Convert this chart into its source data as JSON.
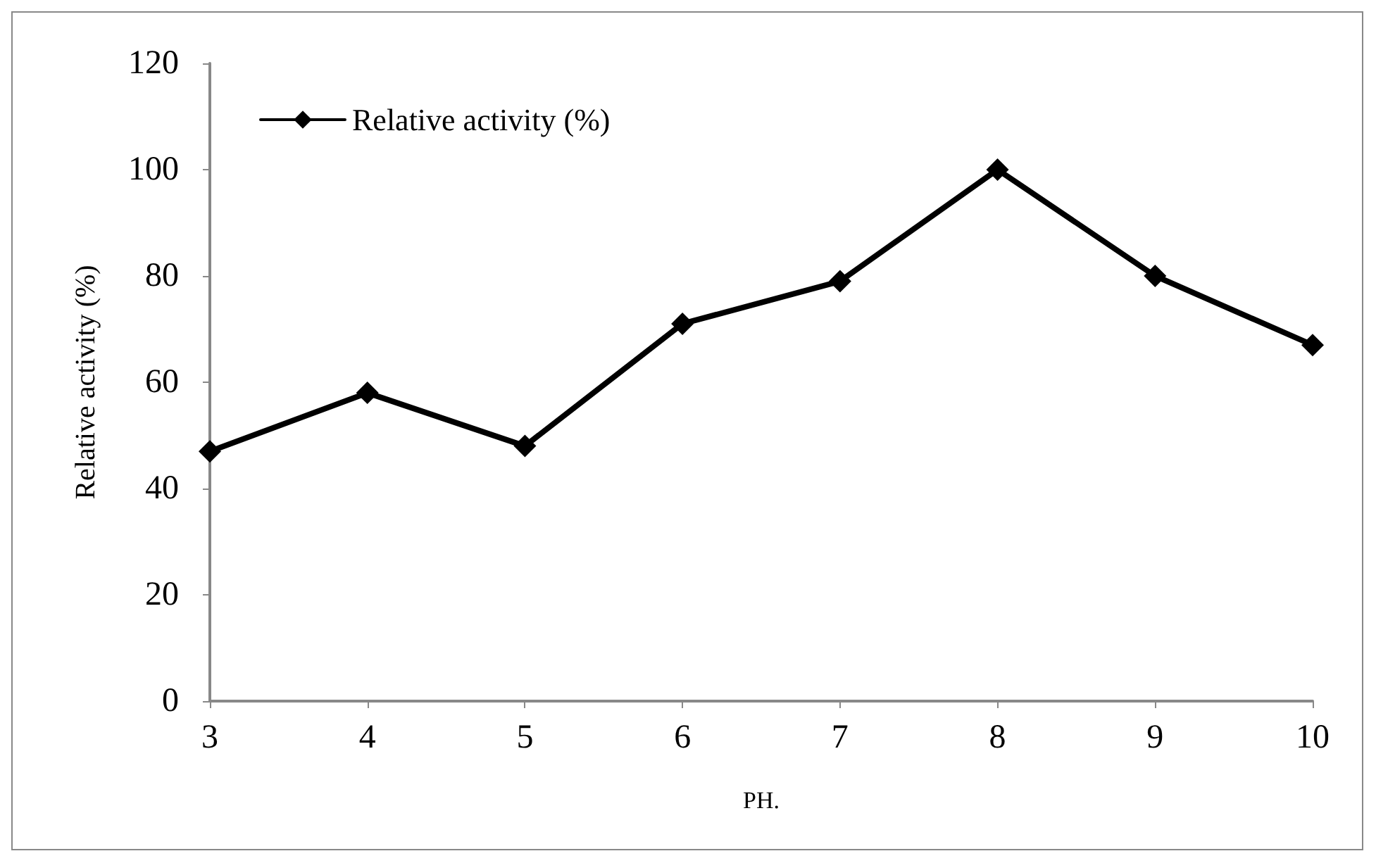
{
  "chart_data": {
    "type": "line",
    "xlabel": "PH.",
    "ylabel": "Relative activity (%)",
    "categories": [
      "3",
      "4",
      "5",
      "6",
      "7",
      "8",
      "9",
      "10"
    ],
    "series": [
      {
        "name": "Relative activity (%)",
        "color": "#000000",
        "values": [
          47,
          58,
          48,
          71,
          79,
          100,
          80,
          67
        ]
      }
    ],
    "ylim": [
      0,
      120
    ],
    "yticks": [
      0,
      20,
      40,
      60,
      80,
      100,
      120
    ],
    "grid": false,
    "legend": "top left",
    "marker": "diamond",
    "line_style": "solid"
  }
}
